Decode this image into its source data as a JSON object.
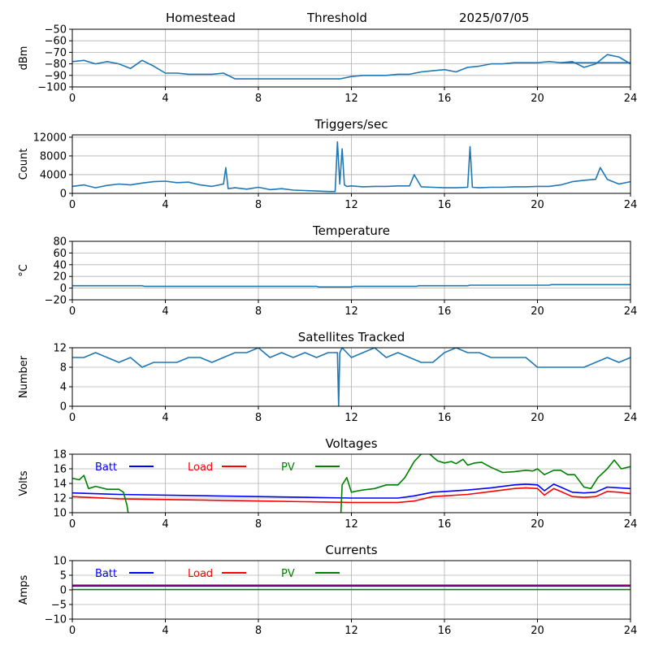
{
  "header": {
    "left": "Homestead",
    "center": "Threshold",
    "right": "2025/07/05"
  },
  "chart_data": [
    {
      "id": "rssi",
      "type": "line",
      "title": "",
      "xlabel": "",
      "ylabel": "dBm",
      "xlim": [
        0,
        24
      ],
      "ylim": [
        -100,
        -50
      ],
      "xticks": [
        "0",
        "4",
        "8",
        "12",
        "16",
        "20",
        "24"
      ],
      "yticks": [
        "−50",
        "−60",
        "−70",
        "−80",
        "−90",
        "−100"
      ],
      "grid": true,
      "series": [
        {
          "color": "#1f77b4",
          "x": [
            0,
            0.5,
            1,
            1.5,
            2,
            2.5,
            3,
            3.5,
            4,
            4.5,
            5,
            5.5,
            6,
            6.5,
            7,
            7.5,
            8,
            8.5,
            9,
            9.5,
            10,
            10.5,
            11,
            11.5,
            12,
            12.5,
            13,
            13.5,
            14,
            14.5,
            15,
            15.5,
            16,
            16.5,
            17,
            17.5,
            18,
            18.5,
            19,
            19.5,
            20,
            20.5,
            21,
            21.5,
            22,
            22.5,
            23,
            23.5,
            24
          ],
          "y": [
            -78,
            -77,
            -80,
            -78,
            -80,
            -84,
            -77,
            -82,
            -88,
            -88,
            -89,
            -89,
            -89,
            -88,
            -93,
            -93,
            -93,
            -93,
            -93,
            -93,
            -93,
            -93,
            -93,
            -93,
            -91,
            -90,
            -90,
            -90,
            -89,
            -89,
            -87,
            -86,
            -85,
            -87,
            -83,
            -82,
            -80,
            -80,
            -79,
            -79,
            -79,
            -78,
            -79,
            -78,
            -83,
            -80,
            -72,
            -74,
            -80
          ]
        },
        {
          "color": "#1f77b4",
          "x": [
            21,
            24
          ],
          "y": [
            -79,
            -79
          ]
        }
      ]
    },
    {
      "id": "triggers",
      "type": "line",
      "title": "Triggers/sec",
      "xlabel": "",
      "ylabel": "Count",
      "xlim": [
        0,
        24
      ],
      "ylim": [
        0,
        12500
      ],
      "xticks": [
        "0",
        "4",
        "8",
        "12",
        "16",
        "20",
        "24"
      ],
      "yticks": [
        "0",
        "4000",
        "8000",
        "12000"
      ],
      "grid": true,
      "series": [
        {
          "color": "#1f77b4",
          "x": [
            0,
            0.5,
            1,
            1.5,
            2,
            2.5,
            3,
            3.5,
            4,
            4.5,
            5,
            5.5,
            6,
            6.5,
            6.6,
            6.7,
            7,
            7.5,
            8,
            8.5,
            9,
            9.5,
            10,
            10.5,
            11,
            11.3,
            11.4,
            11.5,
            11.6,
            11.7,
            11.8,
            12,
            12.5,
            13,
            13.5,
            14,
            14.5,
            14.7,
            15,
            15.5,
            16,
            16.5,
            17,
            17.1,
            17.2,
            17.5,
            18,
            18.5,
            19,
            19.5,
            20,
            20.5,
            21,
            21.5,
            22,
            22.5,
            22.7,
            23,
            23.5,
            24
          ],
          "y": [
            1500,
            1800,
            1200,
            1700,
            2000,
            1800,
            2200,
            2500,
            2600,
            2300,
            2400,
            1800,
            1500,
            2000,
            5500,
            1000,
            1200,
            900,
            1300,
            800,
            1000,
            700,
            600,
            500,
            400,
            400,
            11000,
            2000,
            9500,
            1800,
            1500,
            1600,
            1400,
            1500,
            1500,
            1600,
            1600,
            4000,
            1400,
            1300,
            1200,
            1200,
            1300,
            10000,
            1300,
            1200,
            1300,
            1300,
            1400,
            1400,
            1500,
            1500,
            1800,
            2500,
            2800,
            3000,
            5500,
            3000,
            2000,
            2500
          ]
        }
      ]
    },
    {
      "id": "temperature",
      "type": "line",
      "title": "Temperature",
      "xlabel": "",
      "ylabel": "°C",
      "xlim": [
        0,
        24
      ],
      "ylim": [
        -20,
        80
      ],
      "xticks": [
        "0",
        "4",
        "8",
        "12",
        "16",
        "20",
        "24"
      ],
      "yticks": [
        "80",
        "60",
        "40",
        "20",
        "0",
        "−20"
      ],
      "grid": true,
      "series": [
        {
          "color": "#1f77b4",
          "x": [
            0,
            3,
            3.1,
            10.5,
            10.6,
            12,
            12.1,
            14.8,
            14.9,
            17,
            17.1,
            20.5,
            20.6,
            24
          ],
          "y": [
            4,
            4,
            3,
            3,
            2,
            2,
            3,
            3,
            4,
            4,
            5,
            5,
            6,
            6
          ]
        }
      ]
    },
    {
      "id": "satellites",
      "type": "line",
      "title": "Satellites Tracked",
      "xlabel": "",
      "ylabel": "Number",
      "xlim": [
        0,
        24
      ],
      "ylim": [
        0,
        12
      ],
      "xticks": [
        "0",
        "4",
        "8",
        "12",
        "16",
        "20",
        "24"
      ],
      "yticks": [
        "0",
        "4",
        "8",
        "12"
      ],
      "grid": true,
      "series": [
        {
          "color": "#1f77b4",
          "x": [
            0,
            0.5,
            1,
            1.5,
            2,
            2.5,
            3,
            3.5,
            4,
            4.5,
            5,
            5.5,
            6,
            6.5,
            7,
            7.5,
            8,
            8.5,
            9,
            9.5,
            10,
            10.5,
            11,
            11.4,
            11.45,
            11.5,
            11.6,
            12,
            12.5,
            13,
            13.5,
            14,
            14.5,
            15,
            15.5,
            16,
            16.5,
            17,
            17.5,
            18,
            18.5,
            19,
            19.5,
            20,
            20.5,
            21,
            21.5,
            22,
            22.5,
            23,
            23.5,
            24
          ],
          "y": [
            10,
            10,
            11,
            10,
            9,
            10,
            8,
            9,
            9,
            9,
            10,
            10,
            9,
            10,
            11,
            11,
            12,
            10,
            11,
            10,
            11,
            10,
            11,
            11,
            0,
            11,
            12,
            10,
            11,
            12,
            10,
            11,
            10,
            9,
            9,
            11,
            12,
            11,
            11,
            10,
            10,
            10,
            10,
            8,
            8,
            8,
            8,
            8,
            9,
            10,
            9,
            10
          ]
        }
      ]
    },
    {
      "id": "voltages",
      "type": "line",
      "title": "Voltages",
      "xlabel": "",
      "ylabel": "Volts",
      "xlim": [
        0,
        24
      ],
      "ylim": [
        10,
        18
      ],
      "xticks": [
        "0",
        "4",
        "8",
        "12",
        "16",
        "20",
        "24"
      ],
      "yticks": [
        "10",
        "12",
        "14",
        "16",
        "18"
      ],
      "grid": true,
      "legend": [
        {
          "name": "Batt",
          "color": "#0000ff"
        },
        {
          "name": "Load",
          "color": "#ff0000"
        },
        {
          "name": "PV",
          "color": "#008000"
        }
      ],
      "series": [
        {
          "name": "Batt",
          "color": "#0000ff",
          "x": [
            0,
            2,
            4,
            6,
            8,
            10,
            12,
            14,
            14.7,
            15.5,
            16,
            17,
            18,
            19,
            19.5,
            20,
            20.3,
            20.7,
            21,
            21.5,
            22,
            22.5,
            23,
            23.5,
            24
          ],
          "y": [
            12.7,
            12.5,
            12.4,
            12.3,
            12.2,
            12.1,
            12,
            12.0,
            12.3,
            12.8,
            12.9,
            13.1,
            13.4,
            13.8,
            13.9,
            13.8,
            13.0,
            13.9,
            13.5,
            12.8,
            12.7,
            12.8,
            13.5,
            13.4,
            13.3
          ]
        },
        {
          "name": "Load",
          "color": "#ff0000",
          "x": [
            0,
            2,
            4,
            6,
            8,
            10,
            12,
            14,
            14.7,
            15.5,
            16,
            17,
            18,
            19,
            19.5,
            20,
            20.3,
            20.7,
            21,
            21.5,
            22,
            22.5,
            23,
            23.5,
            24
          ],
          "y": [
            12.2,
            11.9,
            11.8,
            11.7,
            11.6,
            11.5,
            11.4,
            11.4,
            11.6,
            12.2,
            12.3,
            12.5,
            12.9,
            13.3,
            13.4,
            13.3,
            12.4,
            13.3,
            12.9,
            12.2,
            12.1,
            12.2,
            12.9,
            12.8,
            12.6
          ]
        },
        {
          "name": "PV",
          "color": "#008000",
          "x": [
            0,
            0.3,
            0.5,
            0.7,
            1,
            1.5,
            2,
            2.2,
            2.35,
            2.4
          ],
          "y": [
            14.7,
            14.5,
            15.1,
            13.3,
            13.6,
            13.2,
            13.2,
            12.8,
            11.0,
            10
          ]
        },
        {
          "name": "PV",
          "color": "#008000",
          "x": [
            11.55,
            11.6,
            11.8,
            12,
            12.3,
            12.5,
            13,
            13.5,
            14,
            14.3,
            14.7,
            15,
            15.3,
            15.7,
            16,
            16.3,
            16.5,
            16.8,
            17,
            17.3,
            17.6,
            18,
            18.5,
            19,
            19.5,
            19.8,
            20,
            20.3,
            20.7,
            21,
            21.3,
            21.6,
            22,
            22.3,
            22.6,
            23,
            23.3,
            23.6,
            24
          ],
          "y": [
            10,
            13.8,
            14.8,
            12.8,
            13.0,
            13.1,
            13.3,
            13.8,
            13.8,
            14.8,
            17.0,
            18,
            18.2,
            17.1,
            16.8,
            17.0,
            16.7,
            17.3,
            16.5,
            16.8,
            16.9,
            16.2,
            15.5,
            15.6,
            15.8,
            15.7,
            16.0,
            15.2,
            15.8,
            15.8,
            15.2,
            15.2,
            13.5,
            13.3,
            14.8,
            16.0,
            17.2,
            16.0,
            16.3
          ]
        }
      ]
    },
    {
      "id": "currents",
      "type": "line",
      "title": "Currents",
      "xlabel": "",
      "ylabel": "Amps",
      "xlim": [
        0,
        24
      ],
      "ylim": [
        -10,
        10
      ],
      "xticks": [
        "0",
        "4",
        "8",
        "12",
        "16",
        "20",
        "24"
      ],
      "yticks": [
        "10",
        "5",
        "0",
        "−5",
        "−10"
      ],
      "grid": true,
      "legend": [
        {
          "name": "Batt",
          "color": "#0000ff"
        },
        {
          "name": "Load",
          "color": "#ff0000"
        },
        {
          "name": "PV",
          "color": "#008000"
        }
      ],
      "series": [
        {
          "name": "Load",
          "color": "#ff0000",
          "x": [
            0,
            24
          ],
          "y": [
            1.6,
            1.6
          ]
        },
        {
          "name": "Batt",
          "color": "#0000ff",
          "x": [
            0,
            24
          ],
          "y": [
            1.3,
            1.3
          ]
        },
        {
          "name": "PV",
          "color": "#008000",
          "x": [
            0,
            24
          ],
          "y": [
            0.1,
            0.1
          ]
        }
      ]
    }
  ]
}
